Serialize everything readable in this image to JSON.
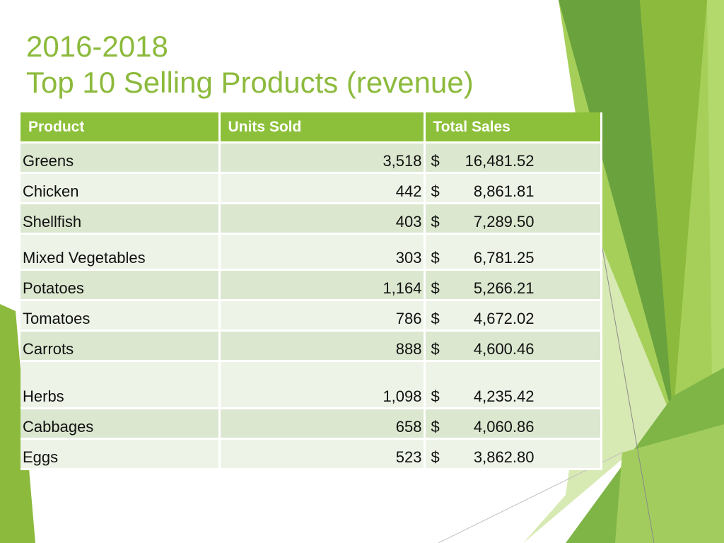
{
  "title": {
    "line1": "2016-2018",
    "line2": "Top 10 Selling Products (revenue)"
  },
  "table": {
    "headers": [
      "Product",
      "Units Sold",
      "Total Sales"
    ],
    "rows": [
      {
        "product": "Greens",
        "units": "3,518",
        "currency": "$",
        "sales": "16,481.52"
      },
      {
        "product": "Chicken",
        "units": "442",
        "currency": "$",
        "sales": "8,861.81"
      },
      {
        "product": "Shellfish",
        "units": "403",
        "currency": "$",
        "sales": "7,289.50"
      },
      {
        "product": "Mixed Vegetables",
        "units": "303",
        "currency": "$",
        "sales": "6,781.25"
      },
      {
        "product": "Potatoes",
        "units": "1,164",
        "currency": "$",
        "sales": "5,266.21"
      },
      {
        "product": "Tomatoes",
        "units": "786",
        "currency": "$",
        "sales": "4,672.02"
      },
      {
        "product": "Carrots",
        "units": "888",
        "currency": "$",
        "sales": "4,600.46"
      },
      {
        "product": "Herbs",
        "units": "1,098",
        "currency": "$",
        "sales": "4,235.42"
      },
      {
        "product": "Cabbages",
        "units": "658",
        "currency": "$",
        "sales": "4,060.86"
      },
      {
        "product": "Eggs",
        "units": "523",
        "currency": "$",
        "sales": "3,862.80"
      }
    ]
  },
  "colors": {
    "title": "#8cba3c",
    "header_bg": "#8dc03a",
    "row_odd": "#dbe7cf",
    "row_even": "#eef3e8"
  }
}
